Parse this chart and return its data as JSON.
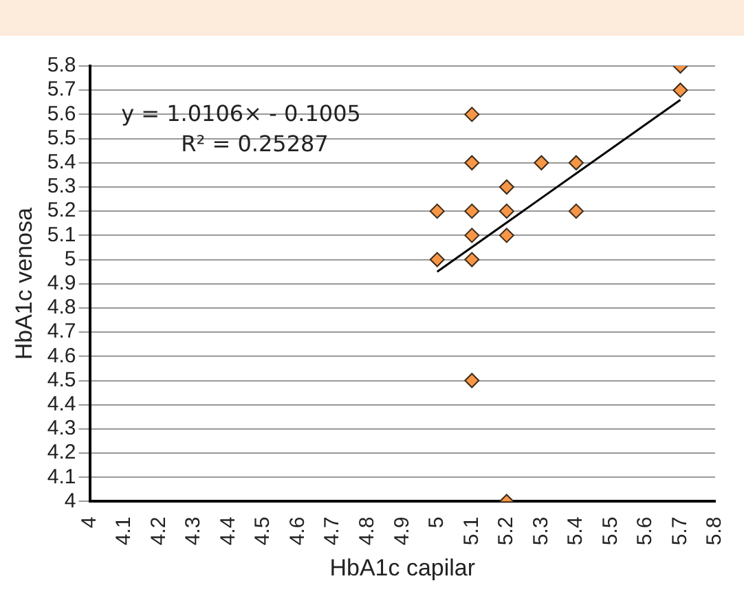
{
  "chart_data": {
    "type": "scatter",
    "xlabel": "HbA1c capilar",
    "ylabel": "HbA1c venosa",
    "annotations": [
      "y = 1.0106× - 0.1005",
      "R² = 0.25287"
    ],
    "xlim": [
      4,
      5.8
    ],
    "xticks": [
      4,
      4.1,
      4.2,
      4.3,
      4.4,
      4.5,
      4.6,
      4.7,
      4.8,
      4.9,
      5,
      5.1,
      5.2,
      5.3,
      5.4,
      5.5,
      5.6,
      5.7,
      5.8
    ],
    "ylim": [
      4,
      5.8
    ],
    "yticks": [
      4,
      4.1,
      4.2,
      4.3,
      4.4,
      4.5,
      4.6,
      4.7,
      4.8,
      4.9,
      5,
      5.1,
      5.2,
      5.3,
      5.4,
      5.5,
      5.6,
      5.7,
      5.8
    ],
    "grid": "y",
    "legend": false,
    "marker": "diamond",
    "series": [
      {
        "color": "#f79646",
        "x": [
          5.0,
          5.0,
          5.1,
          5.1,
          5.1,
          5.1,
          5.1,
          5.1,
          5.2,
          5.2,
          5.2,
          5.2,
          5.3,
          5.4,
          5.4,
          5.7,
          5.7
        ],
        "values": [
          5.0,
          5.2,
          5.6,
          5.4,
          5.2,
          5.1,
          5.0,
          4.5,
          5.3,
          5.2,
          5.1,
          4.0,
          5.4,
          5.4,
          5.2,
          5.8,
          5.7
        ]
      },
      {
        "type": "line",
        "color": "#000000",
        "marker": "none",
        "x": [
          5.0,
          5.7
        ],
        "values": [
          4.95,
          5.66
        ]
      }
    ]
  }
}
